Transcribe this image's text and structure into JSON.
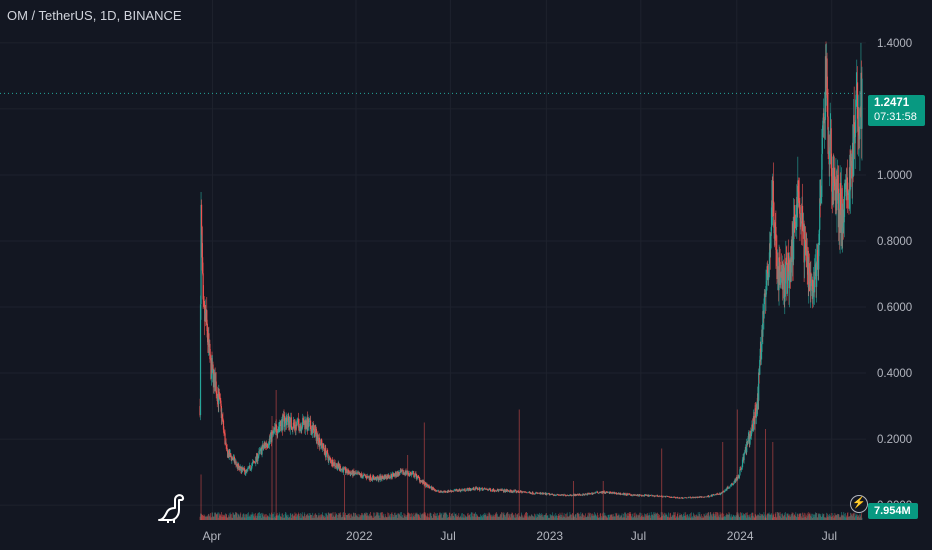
{
  "header": {
    "title": "OM / TetherUS, 1D, BINANCE"
  },
  "price_tag": {
    "price": "1.2471",
    "countdown": "07:31:58"
  },
  "volume_tag": {
    "value": "7.954M"
  },
  "colors": {
    "background": "#131722",
    "up": "#26a69a",
    "down": "#ef5350",
    "tag": "#089981",
    "grid": "#1e222d"
  },
  "icons": {
    "logo": "dinosaur-icon",
    "bolt": "lightning-icon"
  },
  "chart_data": {
    "type": "candlestick",
    "yticks": [
      "1.4000",
      "1.2000",
      "1.0000",
      "0.8000",
      "0.6000",
      "0.4000",
      "0.2000",
      "0.0000"
    ],
    "ytick_values": [
      1.4,
      1.2,
      1.0,
      0.8,
      0.6,
      0.4,
      0.2,
      0.0
    ],
    "ylim": [
      -0.045,
      1.445
    ],
    "xticks": [
      {
        "label": "Apr",
        "date": "2021-04-01"
      },
      {
        "label": "2022",
        "date": "2022-01-01"
      },
      {
        "label": "Jul",
        "date": "2022-07-01"
      },
      {
        "label": "2023",
        "date": "2023-01-01"
      },
      {
        "label": "Jul",
        "date": "2023-07-01"
      },
      {
        "label": "2024",
        "date": "2024-01-01"
      },
      {
        "label": "Jul",
        "date": "2024-07-01"
      }
    ],
    "xlim": [
      "2021-03-08",
      "2024-08-28"
    ],
    "last_price": 1.2471,
    "price_series": [
      [
        "2021-03-08",
        0.3
      ],
      [
        "2021-03-10",
        0.87
      ],
      [
        "2021-03-14",
        0.58
      ],
      [
        "2021-03-20",
        0.55
      ],
      [
        "2021-03-28",
        0.42
      ],
      [
        "2021-04-08",
        0.36
      ],
      [
        "2021-04-18",
        0.28
      ],
      [
        "2021-04-28",
        0.16
      ],
      [
        "2021-05-10",
        0.14
      ],
      [
        "2021-05-22",
        0.11
      ],
      [
        "2021-06-05",
        0.1
      ],
      [
        "2021-06-20",
        0.13
      ],
      [
        "2021-07-05",
        0.17
      ],
      [
        "2021-07-20",
        0.2
      ],
      [
        "2021-08-05",
        0.24
      ],
      [
        "2021-08-20",
        0.26
      ],
      [
        "2021-09-05",
        0.24
      ],
      [
        "2021-09-25",
        0.25
      ],
      [
        "2021-10-10",
        0.23
      ],
      [
        "2021-10-25",
        0.19
      ],
      [
        "2021-11-10",
        0.14
      ],
      [
        "2021-11-25",
        0.12
      ],
      [
        "2021-12-15",
        0.1
      ],
      [
        "2022-01-10",
        0.09
      ],
      [
        "2022-02-10",
        0.08
      ],
      [
        "2022-03-10",
        0.09
      ],
      [
        "2022-04-05",
        0.1
      ],
      [
        "2022-04-25",
        0.09
      ],
      [
        "2022-05-15",
        0.06
      ],
      [
        "2022-06-10",
        0.04
      ],
      [
        "2022-07-15",
        0.045
      ],
      [
        "2022-08-20",
        0.05
      ],
      [
        "2022-10-01",
        0.045
      ],
      [
        "2022-11-15",
        0.04
      ],
      [
        "2022-12-20",
        0.035
      ],
      [
        "2023-02-01",
        0.03
      ],
      [
        "2023-03-15",
        0.032
      ],
      [
        "2023-04-15",
        0.04
      ],
      [
        "2023-05-20",
        0.035
      ],
      [
        "2023-06-20",
        0.03
      ],
      [
        "2023-08-01",
        0.028
      ],
      [
        "2023-09-15",
        0.022
      ],
      [
        "2023-11-01",
        0.025
      ],
      [
        "2023-12-01",
        0.035
      ],
      [
        "2023-12-20",
        0.06
      ],
      [
        "2024-01-05",
        0.09
      ],
      [
        "2024-01-20",
        0.18
      ],
      [
        "2024-02-01",
        0.24
      ],
      [
        "2024-02-10",
        0.32
      ],
      [
        "2024-02-20",
        0.58
      ],
      [
        "2024-03-01",
        0.7
      ],
      [
        "2024-03-10",
        0.93
      ],
      [
        "2024-03-20",
        0.7
      ],
      [
        "2024-04-01",
        0.68
      ],
      [
        "2024-04-15",
        0.74
      ],
      [
        "2024-04-25",
        0.98
      ],
      [
        "2024-05-10",
        0.78
      ],
      [
        "2024-05-25",
        0.66
      ],
      [
        "2024-06-05",
        0.75
      ],
      [
        "2024-06-15",
        1.12
      ],
      [
        "2024-06-20",
        1.35
      ],
      [
        "2024-06-25",
        1.08
      ],
      [
        "2024-07-05",
        1.0
      ],
      [
        "2024-07-15",
        0.9
      ],
      [
        "2024-07-25",
        0.88
      ],
      [
        "2024-08-05",
        1.0
      ],
      [
        "2024-08-15",
        1.15
      ],
      [
        "2024-08-28",
        1.2471
      ]
    ],
    "volume_spikes": [
      [
        "2021-03-10",
        0.35
      ],
      [
        "2021-07-24",
        0.8
      ],
      [
        "2021-08-01",
        1.0
      ],
      [
        "2021-12-10",
        0.35
      ],
      [
        "2022-04-10",
        0.5
      ],
      [
        "2022-05-12",
        0.75
      ],
      [
        "2022-11-10",
        0.85
      ],
      [
        "2023-02-22",
        0.3
      ],
      [
        "2023-04-20",
        0.3
      ],
      [
        "2023-08-10",
        0.55
      ],
      [
        "2023-12-05",
        0.6
      ],
      [
        "2024-01-02",
        0.85
      ],
      [
        "2024-02-05",
        0.9
      ],
      [
        "2024-02-25",
        0.7
      ],
      [
        "2024-03-10",
        0.6
      ]
    ],
    "xlabel": "",
    "ylabel": "",
    "grid": true,
    "legend": "none"
  }
}
